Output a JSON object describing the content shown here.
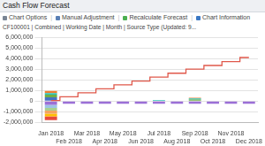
{
  "chart_data": {
    "type": "bar",
    "title": "Cash Flow Forecast",
    "annotations": [
      "Chart Options",
      "Manual Adjustment",
      "Recalculate Forecast",
      "Chart Information"
    ],
    "subtitle": "CF100001 | Combined | Working Date | Month | Source Type (Updated: 9...",
    "categories": [
      "Jan 2018",
      "Feb 2018",
      "Mar 2018",
      "Apr 2018",
      "May 2018",
      "Jun 2018",
      "Jul 2018",
      "Aug 2018",
      "Sep 2018",
      "Oct 2018",
      "Nov 2018",
      "Dec 2018"
    ],
    "stacked": true,
    "grid": true,
    "ylim": [
      -2000000,
      6000000
    ],
    "yticks": [
      {
        "value": -2000000,
        "label": "-2,000,000"
      },
      {
        "value": -1000000,
        "label": "-1,000,000"
      },
      0,
      {
        "value": 1000000,
        "label": "1,000,000"
      },
      {
        "value": 2000000,
        "label": "2,000,000"
      },
      {
        "value": 3000000,
        "label": "3,000,000"
      },
      {
        "value": 4000000,
        "label": "4,000,000"
      },
      {
        "value": 5000000,
        "label": "5,000,000"
      },
      {
        "value": 6000000,
        "label": "6,000,000"
      }
    ],
    "series": [
      {
        "color": "#4472c4",
        "values": [
          350000,
          null,
          null,
          null,
          null,
          null,
          null,
          null,
          null,
          null,
          null,
          null
        ]
      },
      {
        "color": "#70ad47",
        "values": [
          250000,
          null,
          null,
          null,
          null,
          null,
          null,
          null,
          150000,
          null,
          null,
          null
        ]
      },
      {
        "color": "#2ec4b6",
        "values": [
          150000,
          null,
          null,
          null,
          null,
          null,
          100000,
          null,
          100000,
          null,
          null,
          null
        ]
      },
      {
        "color": "#ed7d31",
        "values": [
          200000,
          null,
          null,
          null,
          null,
          null,
          null,
          null,
          60000,
          null,
          null,
          null
        ]
      },
      {
        "color": "#9b6fd6",
        "values": [
          -350000,
          -250000,
          -250000,
          -250000,
          -250000,
          -250000,
          -250000,
          -250000,
          -250000,
          -250000,
          -250000,
          -250000
        ]
      },
      {
        "color": "#9dc3e6",
        "values": [
          -300000,
          null,
          null,
          null,
          null,
          null,
          null,
          null,
          null,
          null,
          null,
          null
        ]
      },
      {
        "color": "#a9d18e",
        "values": [
          -250000,
          null,
          null,
          null,
          null,
          null,
          null,
          null,
          null,
          null,
          null,
          null
        ]
      },
      {
        "color": "#f4a460",
        "values": [
          -300000,
          null,
          null,
          null,
          null,
          null,
          null,
          null,
          null,
          null,
          null,
          null
        ]
      },
      {
        "color": "#ffc000",
        "values": [
          -250000,
          null,
          null,
          null,
          null,
          null,
          null,
          null,
          null,
          null,
          null,
          null
        ]
      },
      {
        "color": "#e84a3c",
        "values": [
          -350000,
          null,
          null,
          null,
          null,
          null,
          null,
          null,
          null,
          null,
          null,
          null
        ]
      },
      {
        "type": "line",
        "color": "#e0584b",
        "line_style": "stepped",
        "marker": "none",
        "values": [
          50000,
          400000,
          780000,
          1150000,
          1520000,
          1880000,
          2250000,
          2620000,
          3000000,
          3350000,
          3720000,
          4100000
        ]
      }
    ]
  }
}
